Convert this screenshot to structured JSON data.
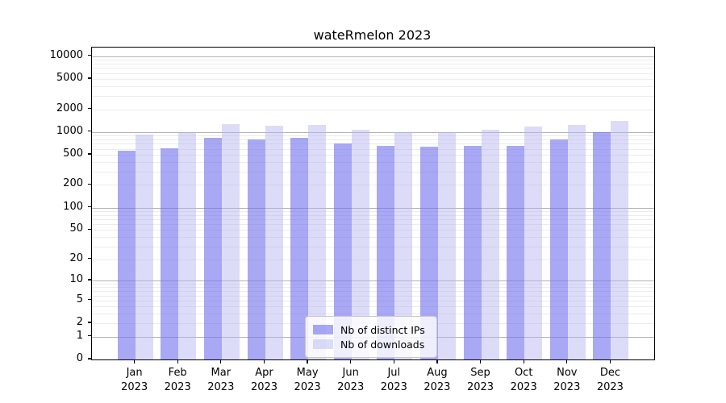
{
  "title": "wateRmelon 2023",
  "chart_data": {
    "type": "bar",
    "title": "wateRmelon 2023",
    "categories": [
      "Jan",
      "Feb",
      "Mar",
      "Apr",
      "May",
      "Jun",
      "Jul",
      "Aug",
      "Sep",
      "Oct",
      "Nov",
      "Dec"
    ],
    "year": "2023",
    "series": [
      {
        "name": "Nb of distinct IPs",
        "color": "rgba(110,110,238,0.60)",
        "values": [
          568,
          610,
          845,
          790,
          845,
          714,
          659,
          642,
          659,
          650,
          806,
          1005
        ]
      },
      {
        "name": "Nb of downloads",
        "color": "rgba(177,177,240,0.45)",
        "values": [
          929,
          974,
          1286,
          1216,
          1247,
          1076,
          1006,
          1006,
          1059,
          1167,
          1236,
          1410
        ]
      }
    ],
    "y_ticks": [
      10000,
      5000,
      2000,
      1000,
      500,
      200,
      100,
      50,
      20,
      10,
      5,
      2,
      1,
      0
    ],
    "ylim": [
      0,
      13000
    ],
    "y_scale": "log10(v+1)",
    "grid": true,
    "legend_position": "lower center",
    "colors": {
      "decade_gridline": "#b3b3b8",
      "minor_gridline": "#ececec",
      "axis": "#000000",
      "legend_border": "#c8c8c8"
    }
  }
}
